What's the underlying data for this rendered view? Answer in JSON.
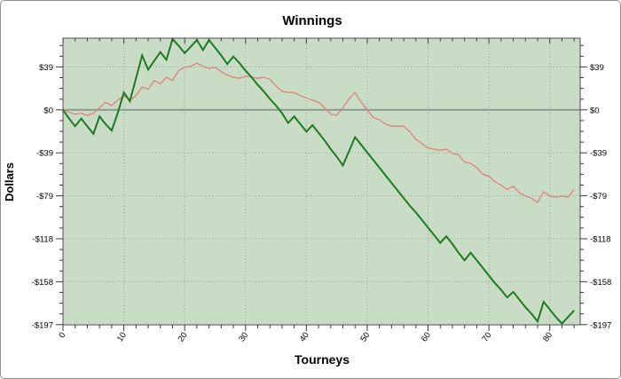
{
  "chart": {
    "title": "Winnings",
    "xlabel": "Tourneys",
    "ylabel": "Dollars"
  },
  "chart_data": {
    "type": "line",
    "title": "Winnings",
    "xlabel": "Tourneys",
    "ylabel": "Dollars",
    "xlim": [
      0,
      85
    ],
    "ylim": [
      -197.2,
      65.8
    ],
    "grid": true,
    "grid_style": "dotted",
    "legend": "none",
    "x_ticks": {
      "major": [
        0,
        10,
        20,
        30,
        40,
        50,
        60,
        70,
        80
      ],
      "minor_step": 2,
      "label_rotation_deg": -55
    },
    "y_ticks": {
      "major": [
        {
          "v": 39.4,
          "label": "$39"
        },
        {
          "v": 0,
          "label": "$0"
        },
        {
          "v": -39.4,
          "label": "-$39"
        },
        {
          "v": -78.8,
          "label": "-$79"
        },
        {
          "v": -118.2,
          "label": "-$118"
        },
        {
          "v": -157.6,
          "label": "-$158"
        },
        {
          "v": -197,
          "label": "-$197"
        }
      ],
      "minor_step": 9.85,
      "labels_on_both_sides": true
    },
    "x": [
      0,
      1,
      2,
      3,
      4,
      5,
      6,
      7,
      8,
      9,
      10,
      11,
      12,
      13,
      14,
      15,
      16,
      17,
      18,
      19,
      20,
      21,
      22,
      23,
      24,
      25,
      26,
      27,
      28,
      29,
      30,
      31,
      32,
      33,
      34,
      35,
      36,
      37,
      38,
      39,
      40,
      41,
      42,
      43,
      44,
      45,
      46,
      47,
      48,
      49,
      50,
      51,
      52,
      53,
      54,
      55,
      56,
      57,
      58,
      59,
      60,
      61,
      62,
      63,
      64,
      65,
      66,
      67,
      68,
      69,
      70,
      71,
      72,
      73,
      74,
      75,
      76,
      77,
      78,
      79,
      80,
      81,
      82,
      83,
      84
    ],
    "series": [
      {
        "name": "winnings-red-series",
        "color": "#e08080",
        "width": 1.3,
        "values": [
          0,
          -2,
          -4,
          -3,
          -5,
          -3,
          2,
          7,
          4,
          9,
          13,
          9,
          13,
          21,
          19,
          27,
          24,
          30,
          27,
          36,
          39,
          40,
          43,
          40,
          38,
          39,
          35,
          32,
          30,
          29,
          31,
          30,
          29,
          30,
          28,
          22,
          17,
          16,
          16,
          13,
          11,
          9,
          7,
          2,
          -4,
          -5,
          2,
          10,
          16,
          7,
          0,
          -7,
          -9,
          -13,
          -15,
          -15,
          -15,
          -20,
          -27,
          -31,
          -35,
          -36,
          -37,
          -36,
          -40,
          -41,
          -48,
          -49,
          -53,
          -59,
          -61,
          -66,
          -69,
          -73,
          -70,
          -76,
          -79,
          -81,
          -85,
          -75,
          -79,
          -80,
          -79,
          -80,
          -73
        ]
      },
      {
        "name": "winnings-green-series",
        "color": "#1f7a1f",
        "width": 2,
        "values": [
          0,
          -8,
          -15,
          -8,
          -15,
          -22,
          -6,
          -13,
          -19,
          -3,
          16,
          8,
          29,
          50,
          37,
          45,
          53,
          46,
          65,
          59,
          52,
          58,
          64,
          55,
          64,
          57,
          50,
          42,
          49,
          43,
          36,
          30,
          23,
          17,
          10,
          4,
          -3,
          -12,
          -6,
          -13,
          -20,
          -14,
          -21,
          -28,
          -36,
          -43,
          -51,
          -38,
          -25,
          -32,
          -39,
          -46,
          -53,
          -60,
          -67,
          -74,
          -81,
          -88,
          -94,
          -101,
          -108,
          -115,
          -122,
          -116,
          -123,
          -131,
          -138,
          -131,
          -138,
          -145,
          -152,
          -159,
          -165,
          -172,
          -167,
          -174,
          -181,
          -187,
          -194,
          -176,
          -183,
          -190,
          -196,
          -190,
          -184
        ]
      }
    ],
    "colors": {
      "plot_background": "#c8dcc6",
      "zero_line": "#8c998c",
      "gridline": "#999f99",
      "frame": "#4f4f4f",
      "tick": "#3a3a3a",
      "text": "#000000",
      "page_background": "#ffffff",
      "page_border": "#8f8f8f"
    }
  }
}
